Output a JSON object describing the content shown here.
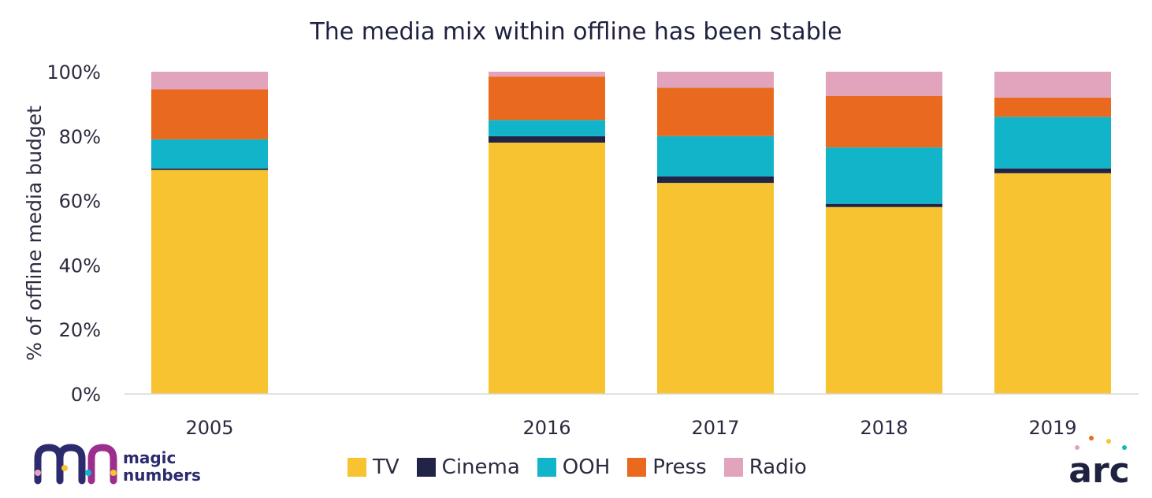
{
  "chart_data": {
    "type": "bar",
    "stacked": true,
    "title": "The media mix within offline has been stable",
    "xlabel": "",
    "ylabel": "% of offline media budget",
    "ylim": [
      0,
      100
    ],
    "ytick_labels": [
      "0%",
      "20%",
      "40%",
      "60%",
      "80%",
      "100%"
    ],
    "yticks": [
      0,
      20,
      40,
      60,
      80,
      100
    ],
    "categories": [
      "2005",
      "2016",
      "2017",
      "2018",
      "2019"
    ],
    "x": [
      2005,
      2016,
      2017,
      2018,
      2019
    ],
    "grid": false,
    "legend_position": "bottom",
    "series": [
      {
        "name": "TV",
        "color": "#F8C331",
        "values": [
          69.5,
          78,
          65.5,
          58,
          68.5
        ]
      },
      {
        "name": "Cinema",
        "color": "#222447",
        "values": [
          0.5,
          2,
          2,
          1,
          1.5
        ]
      },
      {
        "name": "OOH",
        "color": "#11B4C8",
        "values": [
          9,
          5,
          12.5,
          17.5,
          16
        ]
      },
      {
        "name": "Press",
        "color": "#E96A1E",
        "values": [
          15.5,
          13.5,
          15,
          16,
          6
        ]
      },
      {
        "name": "Radio",
        "color": "#E2A3BD",
        "values": [
          5.5,
          1.5,
          5,
          7.5,
          8
        ]
      }
    ]
  },
  "logos": {
    "left": {
      "text_line1": "magic",
      "text_line2": "numbers"
    },
    "right": {
      "text": "arc"
    }
  }
}
